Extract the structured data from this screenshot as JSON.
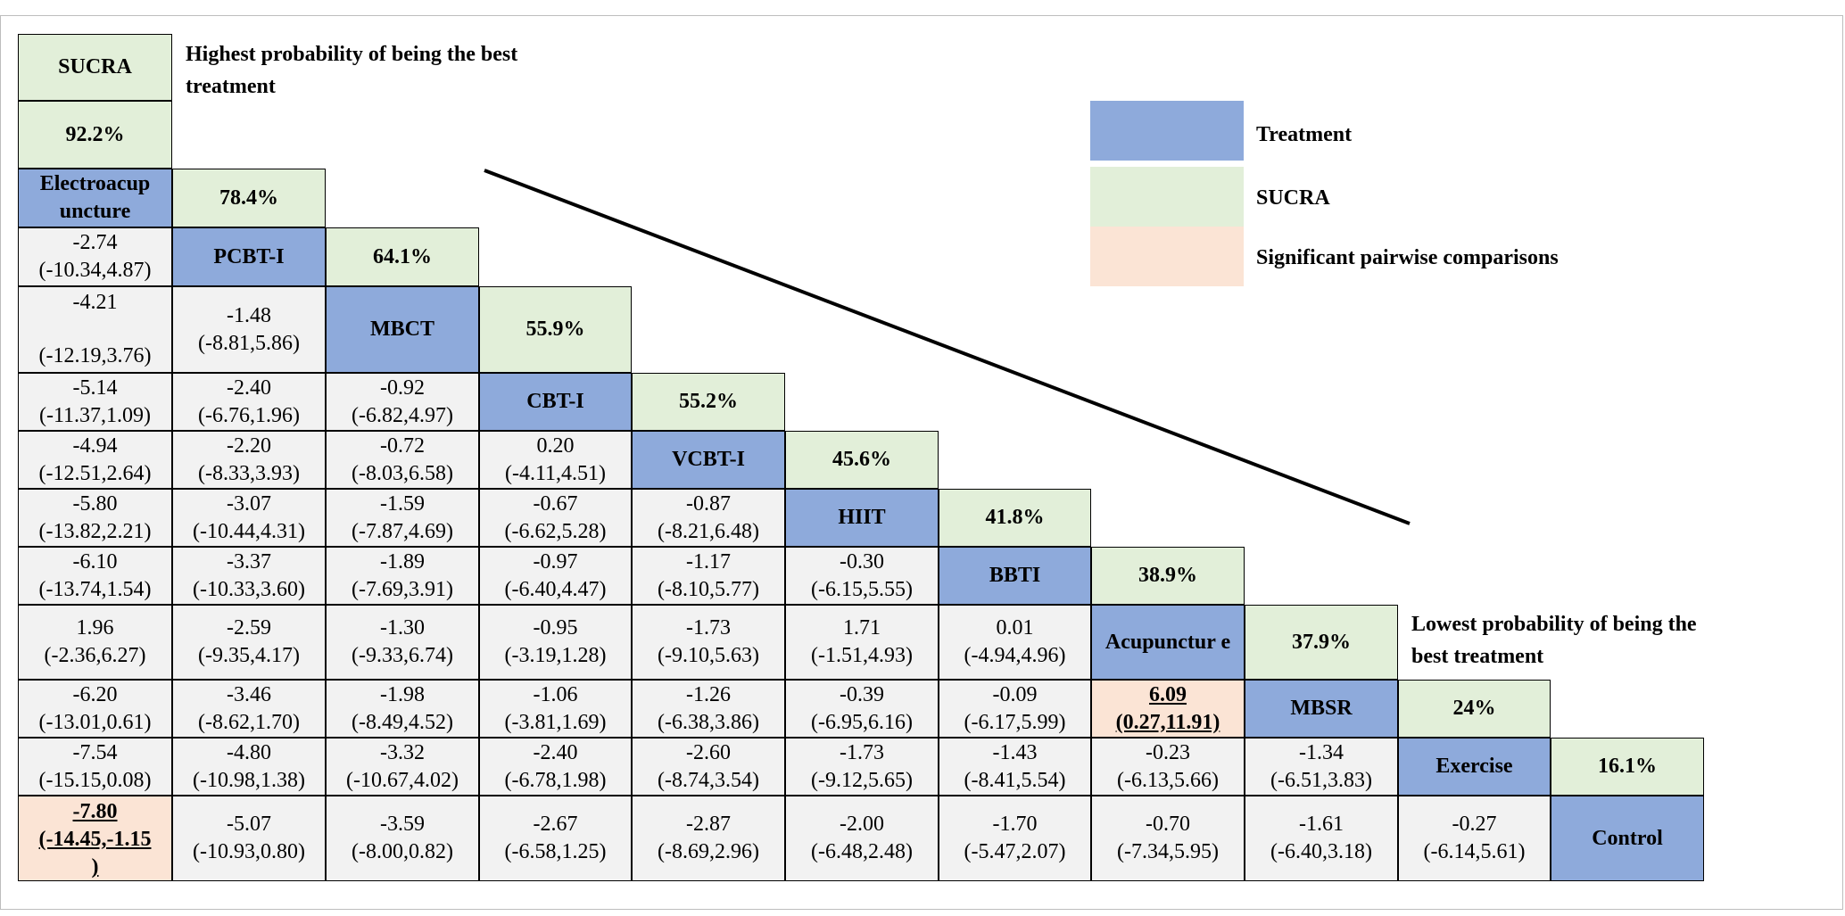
{
  "sucra_header": "SUCRA",
  "notes": {
    "highest": "Highest probability of being the best treatment",
    "lowest": "Lowest probability of being the best treatment"
  },
  "legend": {
    "treatment": "Treatment",
    "sucra": "SUCRA",
    "significant": "Significant pairwise comparisons"
  },
  "colors": {
    "treatment": "#8eaadb",
    "sucra": "#e2efd9",
    "significant": "#fbe4d5",
    "comparison": "#f2f2f2"
  },
  "treatments": [
    {
      "name": "Electroacupuncture",
      "label": "Electroacup uncture",
      "sucra": "92.2%"
    },
    {
      "name": "PCBT-I",
      "label": "PCBT-I",
      "sucra": "78.4%"
    },
    {
      "name": "MBCT",
      "label": "MBCT",
      "sucra": "64.1%"
    },
    {
      "name": "CBT-I",
      "label": "CBT-I",
      "sucra": "55.9%"
    },
    {
      "name": "VCBT-I",
      "label": "VCBT-I",
      "sucra": "55.2%"
    },
    {
      "name": "HIIT",
      "label": "HIIT",
      "sucra": "45.6%"
    },
    {
      "name": "BBTI",
      "label": "BBTI",
      "sucra": "41.8%"
    },
    {
      "name": "Acupuncture",
      "label": "Acupunctur e",
      "sucra": "38.9%"
    },
    {
      "name": "MBSR",
      "label": "MBSR",
      "sucra": "37.9%"
    },
    {
      "name": "Exercise",
      "label": "Exercise",
      "sucra": "24%"
    },
    {
      "name": "Control",
      "label": "Control",
      "sucra": "16.1%"
    }
  ],
  "comparisons": [
    [],
    [
      {
        "est": "-2.74",
        "ci": "(-10.34,4.87)"
      }
    ],
    [
      {
        "est": "-4.21",
        "ci": "(-12.19,3.76)"
      },
      {
        "est": "-1.48",
        "ci": "(-8.81,5.86)"
      }
    ],
    [
      {
        "est": "-5.14",
        "ci": "(-11.37,1.09)"
      },
      {
        "est": "-2.40",
        "ci": "(-6.76,1.96)"
      },
      {
        "est": "-0.92",
        "ci": "(-6.82,4.97)"
      }
    ],
    [
      {
        "est": "-4.94",
        "ci": "(-12.51,2.64)"
      },
      {
        "est": "-2.20",
        "ci": "(-8.33,3.93)"
      },
      {
        "est": "-0.72",
        "ci": "(-8.03,6.58)"
      },
      {
        "est": "0.20",
        "ci": "(-4.11,4.51)"
      }
    ],
    [
      {
        "est": "-5.80",
        "ci": "(-13.82,2.21)"
      },
      {
        "est": "-3.07",
        "ci": "(-10.44,4.31)"
      },
      {
        "est": "-1.59",
        "ci": "(-7.87,4.69)"
      },
      {
        "est": "-0.67",
        "ci": "(-6.62,5.28)"
      },
      {
        "est": "-0.87",
        "ci": "(-8.21,6.48)"
      }
    ],
    [
      {
        "est": "-6.10",
        "ci": "(-13.74,1.54)"
      },
      {
        "est": "-3.37",
        "ci": "(-10.33,3.60)"
      },
      {
        "est": "-1.89",
        "ci": "(-7.69,3.91)"
      },
      {
        "est": "-0.97",
        "ci": "(-6.40,4.47)"
      },
      {
        "est": "-1.17",
        "ci": "(-8.10,5.77)"
      },
      {
        "est": "-0.30",
        "ci": "(-6.15,5.55)"
      }
    ],
    [
      {
        "est": "1.96",
        "ci": "(-2.36,6.27)"
      },
      {
        "est": "-2.59",
        "ci": "(-9.35,4.17)"
      },
      {
        "est": "-1.30",
        "ci": "(-9.33,6.74)"
      },
      {
        "est": "-0.95",
        "ci": "(-3.19,1.28)"
      },
      {
        "est": "-1.73",
        "ci": "(-9.10,5.63)"
      },
      {
        "est": "1.71",
        "ci": "(-1.51,4.93)"
      },
      {
        "est": "0.01",
        "ci": "(-4.94,4.96)"
      }
    ],
    [
      {
        "est": "-6.20",
        "ci": "(-13.01,0.61)"
      },
      {
        "est": "-3.46",
        "ci": "(-8.62,1.70)"
      },
      {
        "est": "-1.98",
        "ci": "(-8.49,4.52)"
      },
      {
        "est": "-1.06",
        "ci": "(-3.81,1.69)"
      },
      {
        "est": "-1.26",
        "ci": "(-6.38,3.86)"
      },
      {
        "est": "-0.39",
        "ci": "(-6.95,6.16)"
      },
      {
        "est": "-0.09",
        "ci": "(-6.17,5.99)"
      },
      {
        "est": "6.09",
        "ci": "(0.27,11.91)",
        "significant": true
      }
    ],
    [
      {
        "est": "-7.54",
        "ci": "(-15.15,0.08)"
      },
      {
        "est": "-4.80",
        "ci": "(-10.98,1.38)"
      },
      {
        "est": "-3.32",
        "ci": "(-10.67,4.02)"
      },
      {
        "est": "-2.40",
        "ci": "(-6.78,1.98)"
      },
      {
        "est": "-2.60",
        "ci": "(-8.74,3.54)"
      },
      {
        "est": "-1.73",
        "ci": "(-9.12,5.65)"
      },
      {
        "est": "-1.43",
        "ci": "(-8.41,5.54)"
      },
      {
        "est": "-0.23",
        "ci": "(-6.13,5.66)"
      },
      {
        "est": "-1.34",
        "ci": "(-6.51,3.83)"
      }
    ],
    [
      {
        "est": "-7.80",
        "ci": "(-14.45,-1.15",
        "ci_tail": ")",
        "significant": true
      },
      {
        "est": "-5.07",
        "ci": "(-10.93,0.80)"
      },
      {
        "est": "-3.59",
        "ci": "(-8.00,0.82)"
      },
      {
        "est": "-2.67",
        "ci": "(-6.58,1.25)"
      },
      {
        "est": "-2.87",
        "ci": "(-8.69,2.96)"
      },
      {
        "est": "-2.00",
        "ci": "(-6.48,2.48)"
      },
      {
        "est": "-1.70",
        "ci": "(-5.47,2.07)"
      },
      {
        "est": "-0.70",
        "ci": "(-7.34,5.95)"
      },
      {
        "est": "-1.61",
        "ci": "(-6.40,3.18)"
      },
      {
        "est": "-0.27",
        "ci": "(-6.14,5.61)"
      }
    ]
  ]
}
